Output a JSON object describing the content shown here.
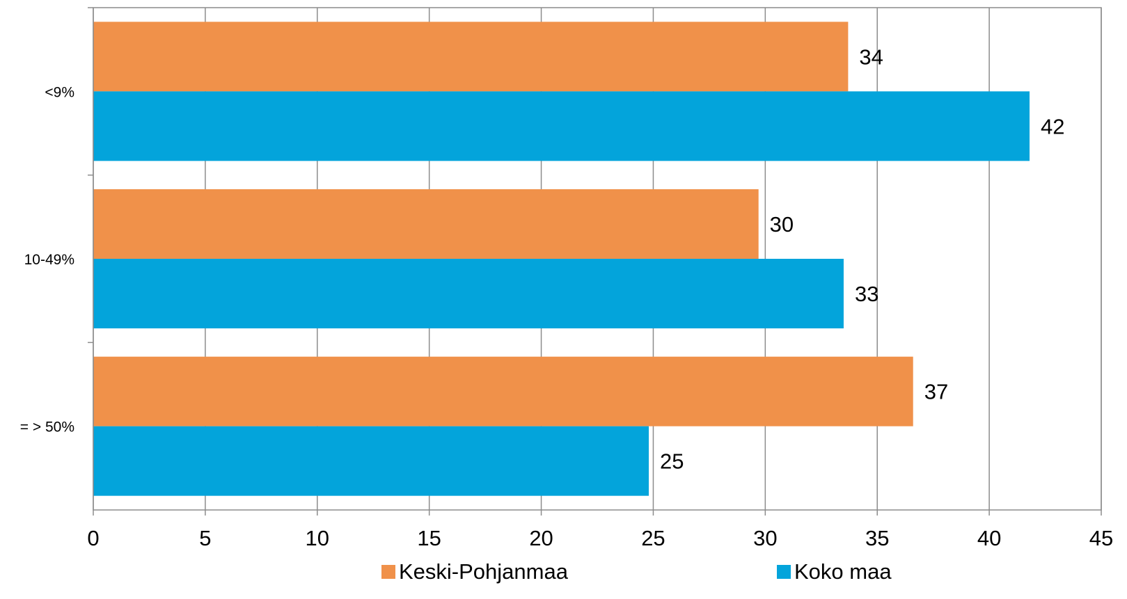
{
  "chart_data": {
    "type": "bar",
    "orientation": "horizontal",
    "categories": [
      "<9%",
      "10-49%",
      "= > 50%"
    ],
    "series": [
      {
        "name": "Keski-Pohjanmaa",
        "values": [
          33.7,
          29.7,
          36.6
        ],
        "labels": [
          "34",
          "30",
          "37"
        ],
        "color": "#F0914A"
      },
      {
        "name": "Koko maa",
        "values": [
          41.8,
          33.5,
          24.8
        ],
        "labels": [
          "42",
          "33",
          "25"
        ],
        "color": "#03A4DB"
      }
    ],
    "xlim": [
      0,
      45
    ],
    "xticks": [
      0,
      5,
      10,
      15,
      20,
      25,
      30,
      35,
      40,
      45
    ],
    "grid": true,
    "legend_position": "bottom"
  }
}
